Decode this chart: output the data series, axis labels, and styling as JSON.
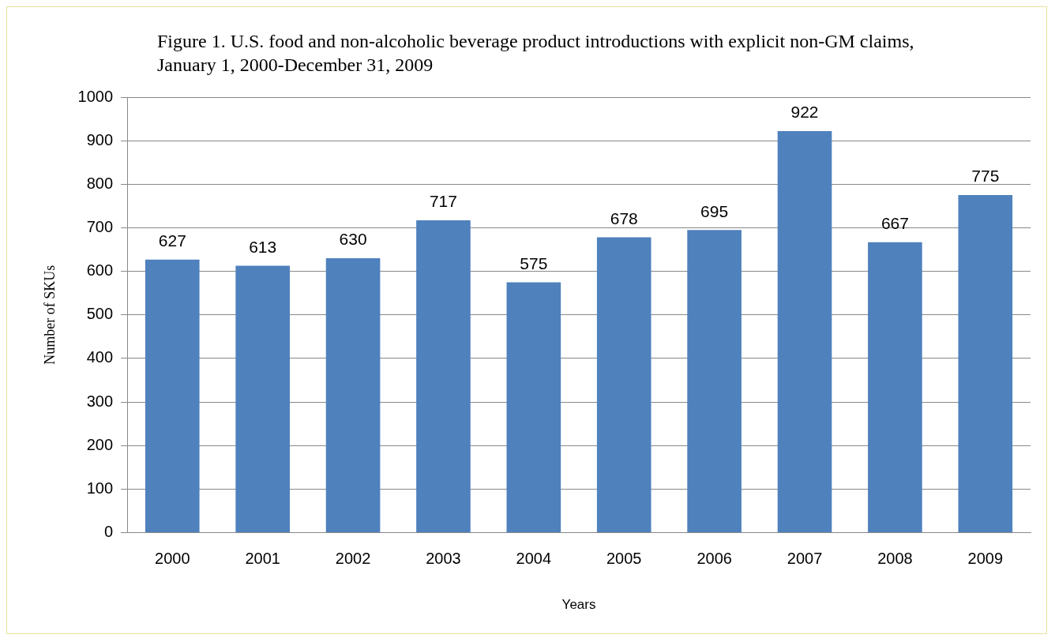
{
  "chart_data": {
    "type": "bar",
    "title": "Figure 1. U.S. food and non-alcoholic beverage product introductions with explicit non-GM claims, January 1, 2000-December 31, 2009",
    "xlabel": "Years",
    "ylabel": "Number of SKUs",
    "categories": [
      "2000",
      "2001",
      "2002",
      "2003",
      "2004",
      "2005",
      "2006",
      "2007",
      "2008",
      "2009"
    ],
    "values": [
      627,
      613,
      630,
      717,
      575,
      678,
      695,
      922,
      667,
      775
    ],
    "color": "#4f81bd",
    "ylim": [
      0,
      1000
    ],
    "yticks": [
      0,
      100,
      200,
      300,
      400,
      500,
      600,
      700,
      800,
      900,
      1000
    ],
    "grid": "y",
    "legend": false,
    "data_labels": true
  }
}
